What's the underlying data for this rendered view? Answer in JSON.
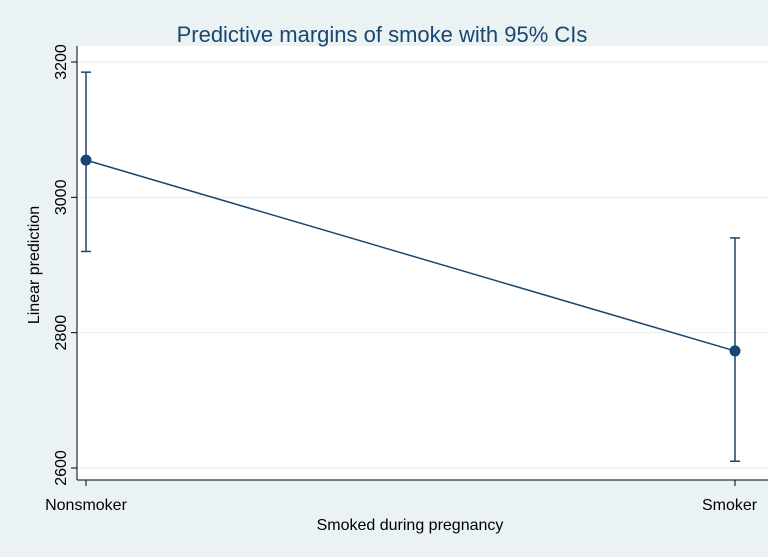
{
  "chart_data": {
    "type": "line",
    "title": "Predictive margins of smoke with 95% CIs",
    "xlabel": "Smoked during pregnancy",
    "ylabel": "Linear prediction",
    "categories": [
      "Nonsmoker",
      "Smoker"
    ],
    "series": [
      {
        "name": "Linear prediction",
        "values": [
          3055,
          2773
        ],
        "ci_lower": [
          2920,
          2610
        ],
        "ci_upper": [
          3185,
          2940
        ]
      }
    ],
    "ylim": [
      2600,
      3200
    ],
    "yticks": [
      2600,
      2800,
      3000,
      3200
    ],
    "grid": true,
    "colors": {
      "background": "#eaf2f3",
      "plot_area": "#ffffff",
      "series": "#1a476f",
      "grid": "#e6eef0",
      "axis": "#000000"
    }
  }
}
